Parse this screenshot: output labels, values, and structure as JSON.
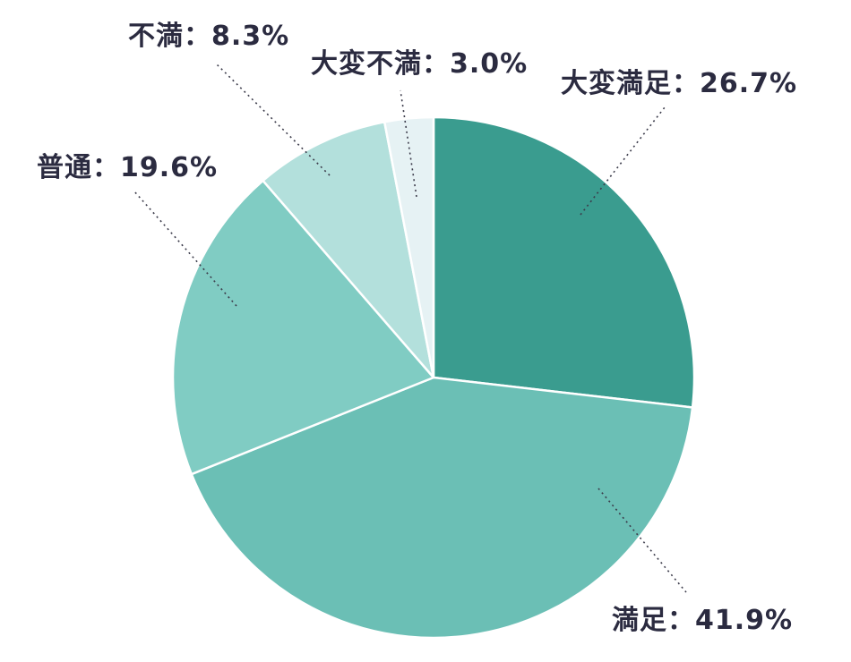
{
  "chart_data": {
    "type": "pie",
    "start_angle_deg": 0,
    "direction": "clockwise",
    "slices": [
      {
        "label": "大変満足",
        "value": 26.7,
        "display": "大変満足：26.7%",
        "color": "#3a9c8f"
      },
      {
        "label": "満足",
        "value": 41.9,
        "display": "満足：41.9%",
        "color": "#6bbfb5"
      },
      {
        "label": "普通",
        "value": 19.6,
        "display": "普通：19.6%",
        "color": "#80ccc3"
      },
      {
        "label": "不満",
        "value": 8.3,
        "display": "不満：8.3%",
        "color": "#b3e0dc"
      },
      {
        "label": "大変不満",
        "value": 3.0,
        "display": "大変不満：3.0%",
        "color": "#e6f2f4"
      }
    ],
    "legend": "none",
    "labels": "outside-with-leader-lines"
  }
}
